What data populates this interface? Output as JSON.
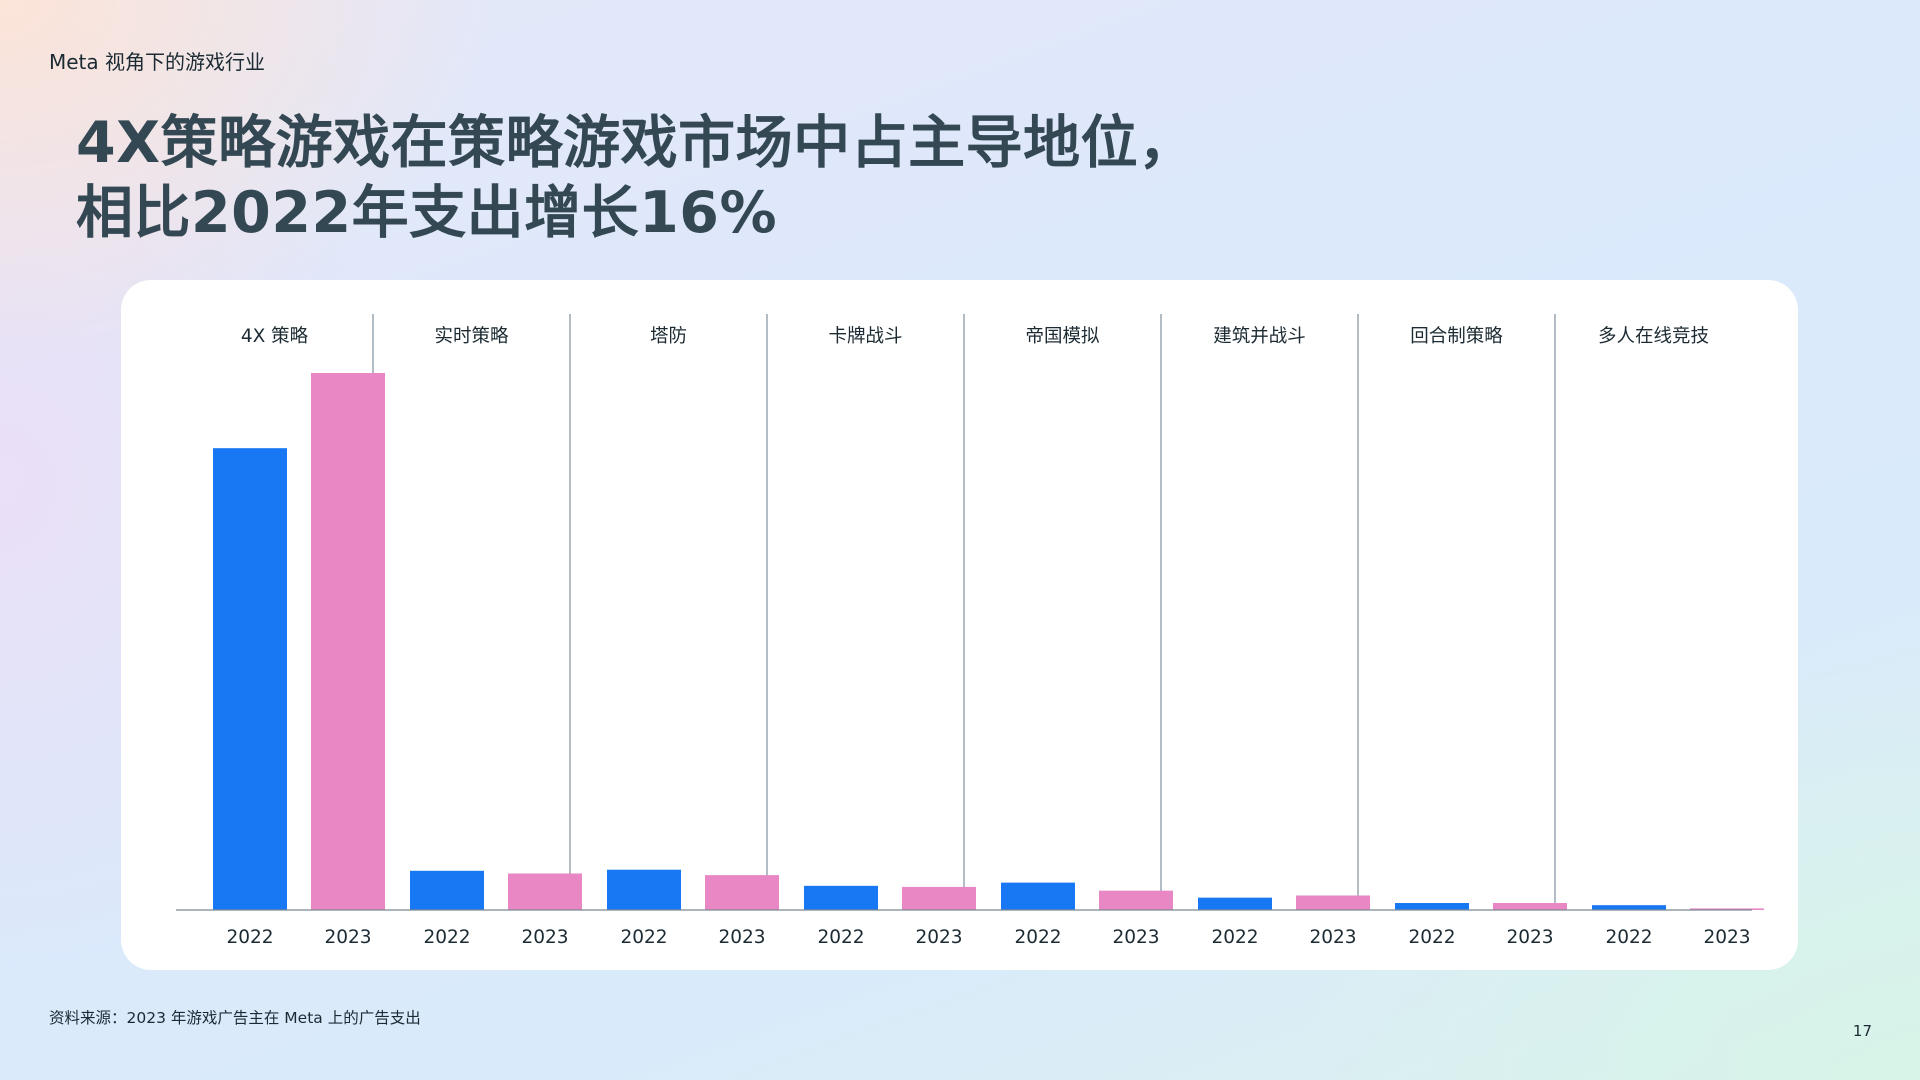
{
  "header": {
    "eyebrow": "Meta 视角下的游戏行业"
  },
  "title": {
    "line1": "4X策略游戏在策略游戏市场中占主导地位，",
    "line2": "相比2022年支出增长16%"
  },
  "footer": {
    "source": "资料来源：2023 年游戏广告主在 Meta 上的广告支出",
    "page_number": "17"
  },
  "colors": {
    "y2022": "#1877f2",
    "y2023": "#e887c4",
    "divider": "#8a99a6",
    "axis": "#7a8994"
  },
  "chart_data": {
    "type": "bar",
    "categories": [
      "4X 策略",
      "实时策略",
      "塔防",
      "卡牌战斗",
      "帝国模拟",
      "建筑并战斗",
      "回合制策略",
      "多人在线竞技"
    ],
    "x_tick_labels": [
      "2022",
      "2023"
    ],
    "series": [
      {
        "name": "2022",
        "values": [
          86,
          7.3,
          7.5,
          4.5,
          5.1,
          2.3,
          1.3,
          0.9
        ]
      },
      {
        "name": "2023",
        "values": [
          100,
          6.8,
          6.5,
          4.3,
          3.6,
          2.7,
          1.3,
          0.3
        ]
      }
    ],
    "ylim": [
      0,
      100
    ],
    "grid": false,
    "legend": "none"
  }
}
